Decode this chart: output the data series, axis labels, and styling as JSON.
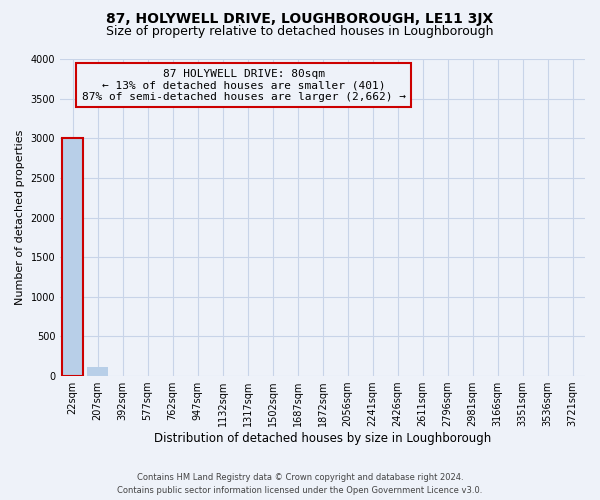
{
  "title": "87, HOLYWELL DRIVE, LOUGHBOROUGH, LE11 3JX",
  "subtitle": "Size of property relative to detached houses in Loughborough",
  "xlabel": "Distribution of detached houses by size in Loughborough",
  "ylabel": "Number of detached properties",
  "categories": [
    "22sqm",
    "207sqm",
    "392sqm",
    "577sqm",
    "762sqm",
    "947sqm",
    "1132sqm",
    "1317sqm",
    "1502sqm",
    "1687sqm",
    "1872sqm",
    "2056sqm",
    "2241sqm",
    "2426sqm",
    "2611sqm",
    "2796sqm",
    "2981sqm",
    "3166sqm",
    "3351sqm",
    "3536sqm",
    "3721sqm"
  ],
  "values": [
    3000,
    120,
    5,
    2,
    1,
    1,
    1,
    1,
    0,
    0,
    0,
    0,
    0,
    0,
    0,
    0,
    0,
    0,
    0,
    0,
    0
  ],
  "bar_color": "#b8cfe8",
  "highlight_bar_index": 0,
  "highlight_border_color": "#cc0000",
  "annotation_line1": "87 HOLYWELL DRIVE: 80sqm",
  "annotation_line2": "← 13% of detached houses are smaller (401)",
  "annotation_line3": "87% of semi-detached houses are larger (2,662) →",
  "annotation_border_color": "#cc0000",
  "ylim": [
    0,
    4000
  ],
  "yticks": [
    0,
    500,
    1000,
    1500,
    2000,
    2500,
    3000,
    3500,
    4000
  ],
  "background_color": "#eef2f9",
  "grid_color": "#c8d4e8",
  "footer_line1": "Contains HM Land Registry data © Crown copyright and database right 2024.",
  "footer_line2": "Contains public sector information licensed under the Open Government Licence v3.0.",
  "title_fontsize": 10,
  "subtitle_fontsize": 9,
  "tick_fontsize": 7,
  "ylabel_fontsize": 8,
  "xlabel_fontsize": 8.5,
  "annotation_fontsize": 8,
  "footer_fontsize": 6
}
